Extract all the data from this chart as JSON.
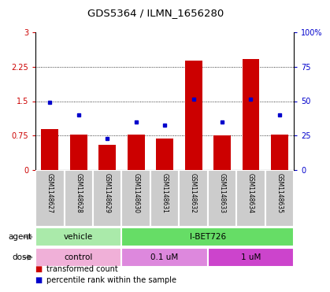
{
  "title": "GDS5364 / ILMN_1656280",
  "samples": [
    "GSM1148627",
    "GSM1148628",
    "GSM1148629",
    "GSM1148630",
    "GSM1148631",
    "GSM1148632",
    "GSM1148633",
    "GSM1148634",
    "GSM1148635"
  ],
  "bar_values": [
    0.9,
    0.78,
    0.55,
    0.78,
    0.68,
    2.38,
    0.76,
    2.42,
    0.77
  ],
  "dot_values": [
    1.47,
    1.2,
    0.68,
    1.05,
    0.97,
    1.55,
    1.05,
    1.55,
    1.2
  ],
  "bar_color": "#cc0000",
  "dot_color": "#0000cc",
  "ylim_left": [
    0,
    3
  ],
  "ylim_right": [
    0,
    100
  ],
  "yticks_left": [
    0,
    0.75,
    1.5,
    2.25,
    3
  ],
  "ytick_labels_left": [
    "0",
    "0.75",
    "1.5",
    "2.25",
    "3"
  ],
  "yticks_right": [
    0,
    25,
    50,
    75,
    100
  ],
  "ytick_labels_right": [
    "0",
    "25",
    "50",
    "75",
    "100%"
  ],
  "hgrid_vals": [
    0.75,
    1.5,
    2.25
  ],
  "agent_groups": [
    {
      "label": "vehicle",
      "start": 0,
      "end": 3,
      "color": "#aaeaaa"
    },
    {
      "label": "I-BET726",
      "start": 3,
      "end": 9,
      "color": "#66dd66"
    }
  ],
  "dose_groups": [
    {
      "label": "control",
      "start": 0,
      "end": 3,
      "color": "#f0b0d8"
    },
    {
      "label": "0.1 uM",
      "start": 3,
      "end": 6,
      "color": "#dd88dd"
    },
    {
      "label": "1 uM",
      "start": 6,
      "end": 9,
      "color": "#cc44cc"
    }
  ],
  "legend_items": [
    {
      "label": "transformed count",
      "color": "#cc0000"
    },
    {
      "label": "percentile rank within the sample",
      "color": "#0000cc"
    }
  ],
  "tick_label_fontsize": 7,
  "axis_color_left": "#cc0000",
  "axis_color_right": "#0000cc",
  "sample_box_color": "#cccccc",
  "bar_width": 0.6
}
